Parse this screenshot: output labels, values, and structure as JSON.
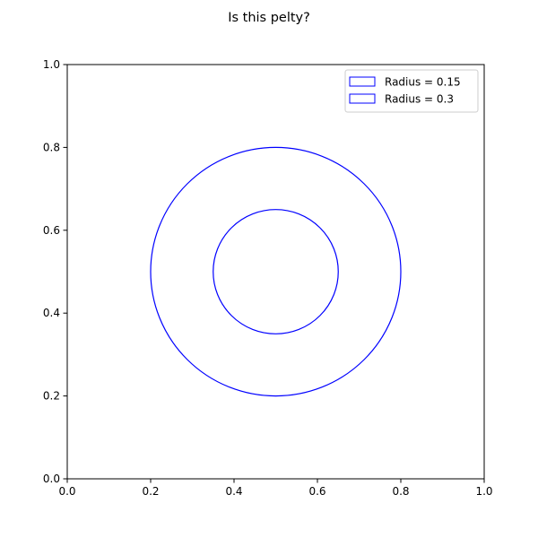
{
  "chart_data": {
    "type": "scatter",
    "title": "Is this pelty?",
    "xlabel": "",
    "ylabel": "",
    "xlim": [
      0.0,
      1.0
    ],
    "ylim": [
      0.0,
      1.0
    ],
    "xticks": [
      "0.0",
      "0.2",
      "0.4",
      "0.6",
      "0.8",
      "1.0"
    ],
    "yticks": [
      "0.0",
      "0.2",
      "0.4",
      "0.6",
      "0.8",
      "1.0"
    ],
    "grid": false,
    "legend_position": "top-right",
    "series": [
      {
        "name": "Radius = 0.15",
        "center": [
          0.5,
          0.5
        ],
        "radius": 0.15,
        "color": "#0000ff",
        "fill": "none"
      },
      {
        "name": "Radius = 0.3",
        "center": [
          0.5,
          0.5
        ],
        "radius": 0.3,
        "color": "#0000ff",
        "fill": "none"
      }
    ]
  }
}
